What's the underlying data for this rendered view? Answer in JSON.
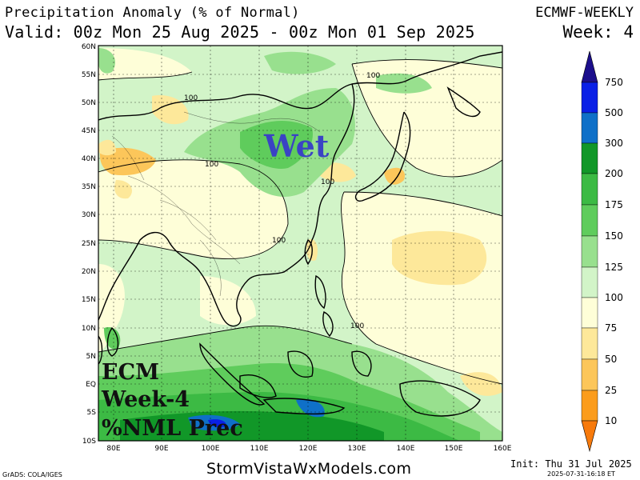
{
  "header": {
    "title": "Precipitation Anomaly (% of Normal)",
    "valid": "Valid: 00z Mon 25 Aug 2025 - 00z Mon 01 Sep 2025",
    "model": "ECMWF-WEEKLY",
    "week": "Week: 4"
  },
  "map": {
    "lon_ticks": [
      "80E",
      "90E",
      "100E",
      "110E",
      "120E",
      "130E",
      "140E",
      "150E",
      "160E"
    ],
    "lat_ticks": [
      "60N",
      "55N",
      "50N",
      "45N",
      "40N",
      "35N",
      "30N",
      "25N",
      "20N",
      "15N",
      "10N",
      "5N",
      "EQ",
      "5S",
      "10S"
    ],
    "contour_labels": [
      "100",
      "100",
      "100",
      "100",
      "100",
      "100"
    ],
    "overlay_wet": "Wet",
    "overlay_ecm": "ECM",
    "overlay_week": "Week-4",
    "overlay_prec": "%NML Prec"
  },
  "legend": {
    "levels": [
      "750",
      "500",
      "300",
      "200",
      "175",
      "150",
      "125",
      "100",
      "75",
      "50",
      "25",
      "10"
    ],
    "colors": {
      "gt750": "#1c0f8c",
      "500_750": "#0a20e6",
      "300_500": "#0f70c8",
      "200_300": "#119728",
      "175_200": "#3cba44",
      "150_175": "#5fcc5c",
      "125_150": "#98e08e",
      "100_125": "#d2f4c8",
      "75_100": "#fefed8",
      "50_75": "#fde89a",
      "25_50": "#fcc65a",
      "10_25": "#fb9c1c",
      "lt10": "#f77a0c"
    }
  },
  "footer": {
    "site": "StormVistaWxModels.com",
    "grads": "GrADS: COLA/IGES",
    "init": "Init: Thu 31 Jul 2025",
    "timestamp": "2025-07-31-16:18 ET"
  }
}
